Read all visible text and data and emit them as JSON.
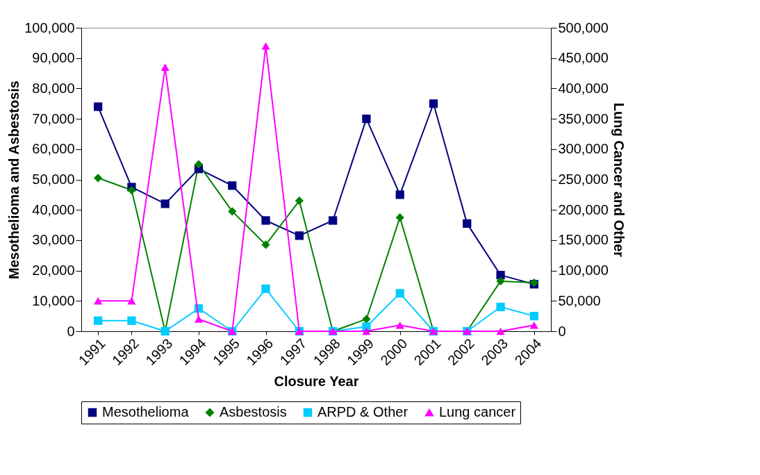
{
  "chart_data": {
    "type": "line",
    "xlabel": "Closure Year",
    "ylabel": "Mesothelioma and Asbestosis",
    "y2label": "Lung Cancer and Other",
    "categories": [
      "1991",
      "1992",
      "1993",
      "1994",
      "1995",
      "1996",
      "1997",
      "1998",
      "1999",
      "2000",
      "2001",
      "2002",
      "2003",
      "2004"
    ],
    "series": [
      {
        "name": "Mesothelioma",
        "color": "#000080",
        "marker": "square",
        "values": [
          74000,
          47500,
          42000,
          53500,
          48000,
          36500,
          31500,
          36500,
          70000,
          45000,
          75000,
          35500,
          18500,
          15500
        ]
      },
      {
        "name": "Asbestosis",
        "color": "#008000",
        "marker": "diamond",
        "values": [
          50500,
          46500,
          0,
          55000,
          39500,
          28500,
          43000,
          0,
          4000,
          37500,
          0,
          0,
          16500,
          16000
        ]
      },
      {
        "name": "ARPD & Other",
        "color": "#00ccff",
        "marker": "square",
        "values": [
          3500,
          3500,
          0,
          7500,
          0,
          14000,
          0,
          0,
          1500,
          12500,
          0,
          0,
          8000,
          5000
        ]
      },
      {
        "name": "Lung cancer",
        "color": "#ff00ff",
        "marker": "triangle",
        "axis": "y2",
        "values": [
          50000,
          50000,
          435000,
          20000,
          0,
          470000,
          0,
          0,
          0,
          10000,
          0,
          0,
          0,
          10000
        ]
      }
    ],
    "ylim": [
      0,
      100000
    ],
    "yticks": [
      0,
      {
        "value": 10000,
        "label": "10,000"
      },
      {
        "value": 20000,
        "label": "20,000"
      },
      {
        "value": 30000,
        "label": "30,000"
      },
      {
        "value": 40000,
        "label": "40,000"
      },
      {
        "value": 50000,
        "label": "50,000"
      },
      {
        "value": 60000,
        "label": "60,000"
      },
      {
        "value": 70000,
        "label": "70,000"
      },
      {
        "value": 80000,
        "label": "80,000"
      },
      {
        "value": 90000,
        "label": "90,000"
      },
      {
        "value": 100000,
        "label": "100,000"
      }
    ],
    "y2lim": [
      0,
      500000
    ],
    "y2ticks": [
      0,
      {
        "value": 50000,
        "label": "50,000"
      },
      {
        "value": 100000,
        "label": "100,000"
      },
      {
        "value": 150000,
        "label": "150,000"
      },
      {
        "value": 200000,
        "label": "200,000"
      },
      {
        "value": 250000,
        "label": "250,000"
      },
      {
        "value": 300000,
        "label": "300,000"
      },
      {
        "value": 350000,
        "label": "350,000"
      },
      {
        "value": 400000,
        "label": "400,000"
      },
      {
        "value": 450000,
        "label": "450,000"
      },
      {
        "value": 500000,
        "label": "500,000"
      }
    ],
    "grid": false,
    "legend": "bottom",
    "line_style": "solid"
  }
}
